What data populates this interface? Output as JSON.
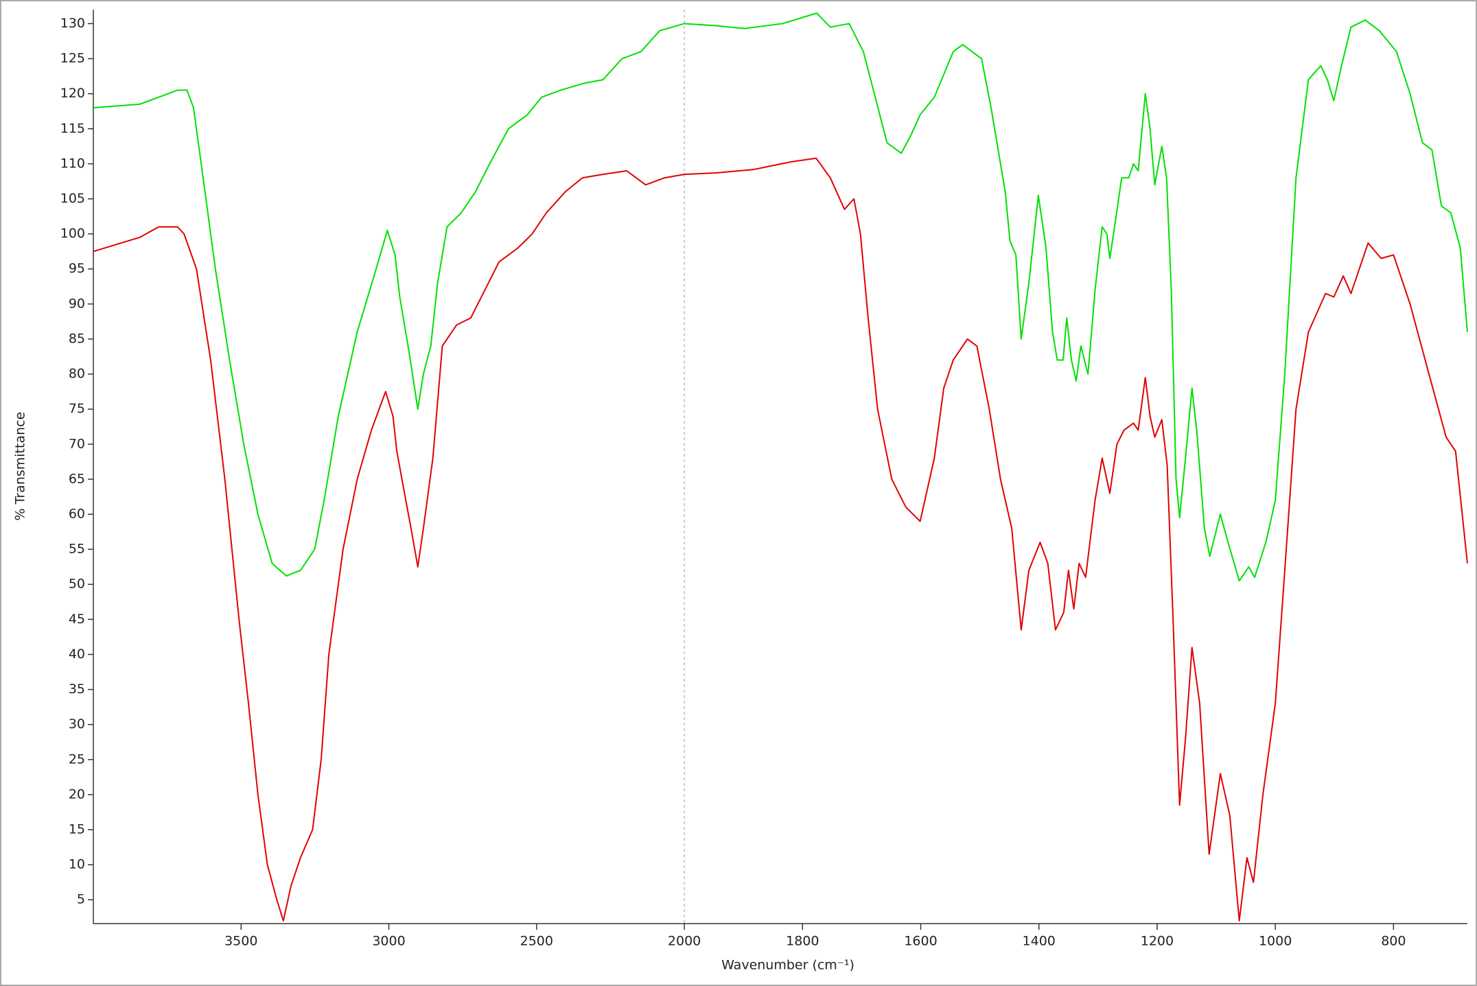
{
  "chart_data": {
    "type": "line",
    "x_label": "Wavenumber (cm⁻¹)",
    "y_label": "% Transmittance",
    "xlim": [
      4000,
      675
    ],
    "x_break": 2000,
    "x_break_ratio": 0.5,
    "xticks": [
      3500,
      3000,
      2500,
      2000,
      1800,
      1600,
      1400,
      1200,
      1000,
      800
    ],
    "ylim": [
      1.6,
      132
    ],
    "yticks": [
      5,
      10,
      15,
      20,
      25,
      30,
      35,
      40,
      45,
      50,
      55,
      60,
      65,
      70,
      75,
      80,
      85,
      90,
      95,
      100,
      105,
      110,
      115,
      120,
      125,
      130
    ],
    "grid": false,
    "series": [
      {
        "color": "#00e000",
        "x": [
          4000,
          3843,
          3715,
          3683,
          3661,
          3635,
          3587,
          3539,
          3491,
          3443,
          3395,
          3347,
          3299,
          3251,
          3219,
          3171,
          3107,
          3043,
          3005,
          2979,
          2963,
          2931,
          2902,
          2883,
          2858,
          2835,
          2803,
          2755,
          2707,
          2659,
          2595,
          2531,
          2483,
          2419,
          2339,
          2275,
          2211,
          2147,
          2083,
          2000,
          1946,
          1898,
          1834,
          1776,
          1753,
          1721,
          1697,
          1657,
          1633,
          1617,
          1601,
          1577,
          1545,
          1529,
          1497,
          1481,
          1457,
          1449,
          1439,
          1430,
          1417,
          1401,
          1388,
          1377,
          1369,
          1359,
          1353,
          1345,
          1337,
          1329,
          1317,
          1305,
          1293,
          1285,
          1280,
          1272,
          1260,
          1248,
          1240,
          1232,
          1220,
          1212,
          1204,
          1192,
          1184,
          1176,
          1168,
          1162,
          1152,
          1141,
          1133,
          1120,
          1111,
          1093,
          1080,
          1061,
          1045,
          1035,
          1016,
          1000,
          984,
          965,
          944,
          923,
          912,
          901,
          888,
          872,
          848,
          824,
          795,
          772,
          751,
          735,
          719,
          703,
          687,
          675
        ],
        "values": [
          118,
          118.5,
          120.5,
          120.5,
          118,
          110,
          95,
          82,
          70,
          60,
          53,
          51.2,
          52,
          55,
          62,
          74,
          86,
          95,
          100.5,
          97,
          91,
          83,
          75,
          80,
          84,
          93,
          101,
          103,
          106,
          110,
          115,
          117,
          119.5,
          120.5,
          121.5,
          122,
          125,
          126,
          129,
          130,
          129.7,
          129.3,
          130,
          131.5,
          129.5,
          130,
          126,
          113,
          111.5,
          114,
          117,
          119.5,
          126,
          127,
          125,
          118,
          106,
          99,
          97,
          85,
          93,
          105.5,
          98,
          86,
          82,
          82,
          88,
          82,
          79,
          84,
          80,
          92,
          101,
          100,
          96.5,
          101,
          108,
          108,
          110,
          109,
          120,
          115,
          107,
          112.5,
          108,
          92,
          65,
          59.5,
          68,
          78,
          72,
          58,
          54,
          60,
          56,
          50.5,
          52.5,
          51,
          56,
          62,
          80,
          108,
          122,
          124,
          122,
          119,
          124,
          129.5,
          130.5,
          129,
          126,
          120,
          113,
          112,
          104,
          103,
          98,
          86
        ]
      },
      {
        "color": "#e00000",
        "x": [
          4000,
          3843,
          3779,
          3715,
          3693,
          3651,
          3603,
          3555,
          3507,
          3475,
          3443,
          3411,
          3379,
          3357,
          3331,
          3299,
          3258,
          3229,
          3203,
          3155,
          3107,
          3059,
          3011,
          2986,
          2973,
          2947,
          2925,
          2902,
          2883,
          2851,
          2819,
          2771,
          2723,
          2675,
          2627,
          2563,
          2515,
          2467,
          2403,
          2345,
          2275,
          2195,
          2131,
          2067,
          2000,
          1946,
          1882,
          1818,
          1777,
          1753,
          1729,
          1713,
          1702,
          1689,
          1673,
          1649,
          1625,
          1601,
          1577,
          1561,
          1545,
          1521,
          1505,
          1484,
          1465,
          1446,
          1430,
          1417,
          1398,
          1385,
          1372,
          1358,
          1350,
          1341,
          1332,
          1321,
          1305,
          1293,
          1280,
          1268,
          1256,
          1240,
          1232,
          1220,
          1212,
          1204,
          1192,
          1183,
          1173,
          1162,
          1152,
          1141,
          1128,
          1112,
          1093,
          1077,
          1061,
          1048,
          1037,
          1021,
          1000,
          984,
          965,
          944,
          915,
          901,
          885,
          872,
          843,
          821,
          800,
          772,
          740,
          711,
          695,
          675
        ],
        "values": [
          97.5,
          99.5,
          101,
          101,
          100,
          95,
          82,
          65,
          45,
          33,
          20,
          10,
          5,
          2,
          7,
          11,
          15,
          25,
          40,
          55,
          65,
          72,
          77.5,
          74,
          69,
          63,
          58,
          52.5,
          58,
          68,
          84,
          87,
          88,
          92,
          96,
          98,
          100,
          103,
          106,
          108,
          108.5,
          109,
          107,
          108,
          108.5,
          108.7,
          109.2,
          110.3,
          110.8,
          108,
          103.5,
          105,
          100,
          88,
          75,
          65,
          61,
          59,
          68,
          78,
          82,
          85,
          84,
          75,
          65,
          58,
          43.5,
          52,
          56,
          53,
          43.5,
          46,
          52,
          46.5,
          53,
          51,
          62,
          68,
          63,
          70,
          72,
          73,
          72,
          79.5,
          74,
          71,
          73.5,
          67,
          45,
          18.5,
          28,
          41,
          33,
          11.5,
          23,
          17,
          2,
          11,
          7.5,
          20,
          33,
          52,
          75,
          86,
          91.5,
          91,
          94,
          91.5,
          98.7,
          96.5,
          97,
          90,
          80,
          71,
          69,
          53
        ]
      }
    ]
  }
}
